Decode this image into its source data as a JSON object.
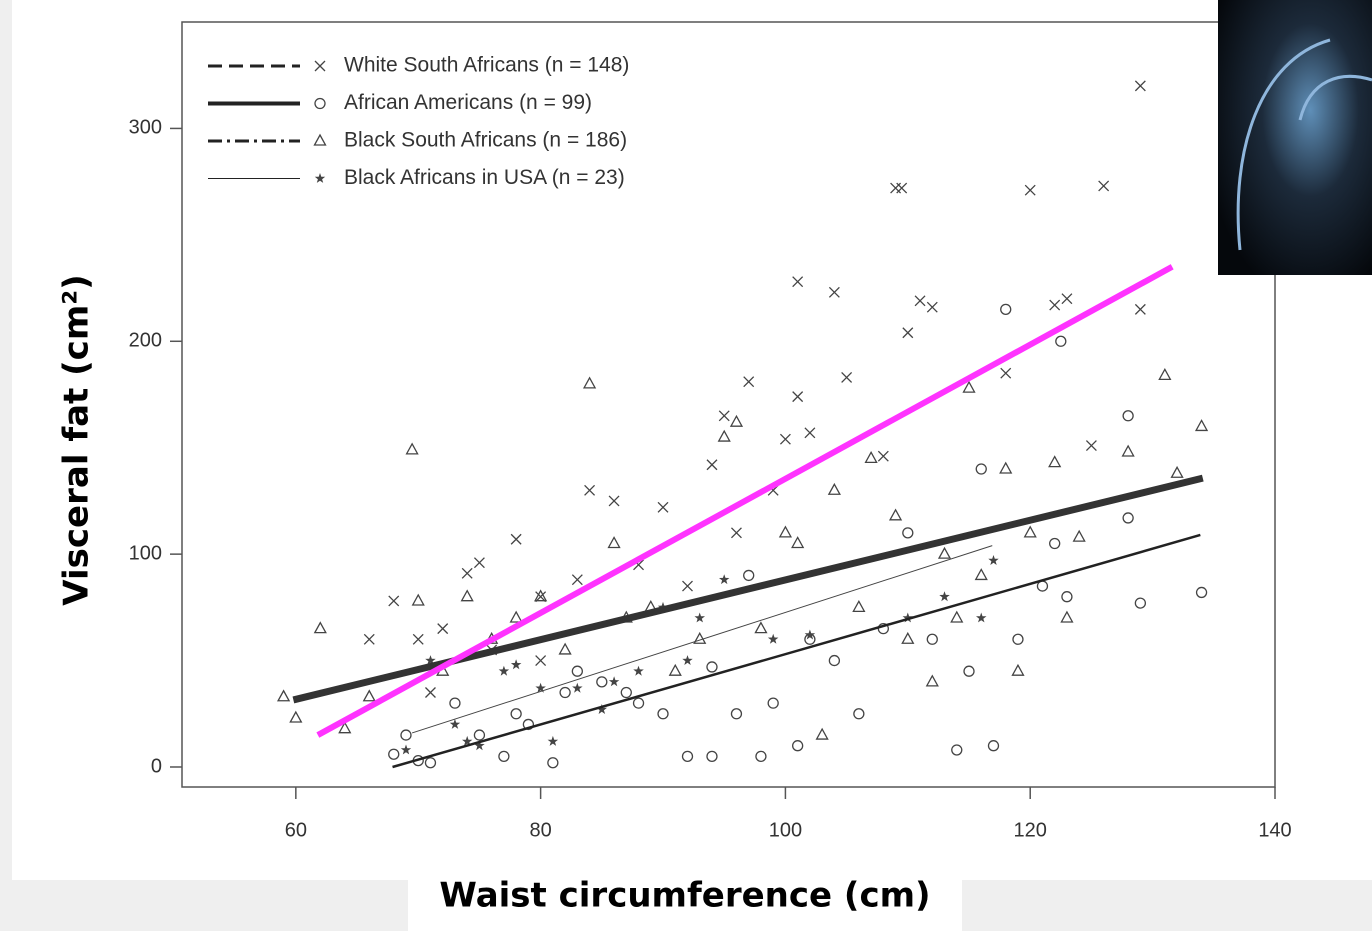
{
  "chart_data": {
    "type": "scatter",
    "xlabel": "Waist circumference (cm)",
    "ylabel": "Visceral fat (cm²)",
    "xlim": [
      50.7,
      140
    ],
    "ylim": [
      -9.4,
      350
    ],
    "xticks": [
      60,
      80,
      100,
      120,
      140
    ],
    "yticks": [
      0,
      100,
      200,
      300
    ],
    "legend": "top-left",
    "series": [
      {
        "name": "White South Africans (n = 148)",
        "marker": "x",
        "color": "#444444",
        "linestyle": "dashed",
        "linewidth": 3,
        "x": [
          129,
          109,
          109.5,
          120,
          126,
          104,
          101,
          111,
          112,
          122,
          123,
          129,
          110,
          97,
          105,
          101,
          95,
          100,
          102,
          94,
          90,
          86,
          84,
          78,
          75,
          74,
          68,
          66,
          70,
          72,
          76,
          80,
          83,
          88,
          92,
          96,
          99,
          108,
          125,
          118,
          71,
          80
        ],
        "y": [
          320,
          272,
          272,
          271,
          273,
          223,
          228,
          219,
          216,
          217,
          220,
          215,
          204,
          181,
          183,
          174,
          165,
          154,
          157,
          142,
          122,
          125,
          130,
          107,
          96,
          91,
          78,
          60,
          60,
          65,
          55,
          80,
          88,
          95,
          85,
          110,
          130,
          146,
          151,
          185,
          35,
          50
        ]
      },
      {
        "name": "African Americans (n = 99)",
        "marker": "circle",
        "color": "#444444",
        "linestyle": "solid",
        "linewidth": 4,
        "x": [
          68,
          69,
          70,
          71,
          73,
          75,
          77,
          78,
          79,
          81,
          82,
          83,
          85,
          87,
          88,
          90,
          92,
          94,
          96,
          98,
          99,
          101,
          102,
          104,
          106,
          108,
          110,
          112,
          114,
          115,
          116,
          117,
          119,
          121,
          122,
          122.5,
          118,
          128,
          128,
          129,
          134,
          123,
          97,
          94
        ],
        "y": [
          6,
          15,
          3,
          2,
          30,
          15,
          5,
          25,
          20,
          2,
          35,
          45,
          40,
          35,
          30,
          25,
          5,
          5,
          25,
          5,
          30,
          10,
          60,
          50,
          25,
          65,
          110,
          60,
          8,
          45,
          140,
          10,
          60,
          85,
          105,
          200,
          215,
          165,
          117,
          77,
          82,
          80,
          90,
          47
        ]
      },
      {
        "name": "Black South Africans (n = 186)",
        "marker": "triangle",
        "color": "#444444",
        "linestyle": "dashdot",
        "linewidth": 3,
        "x": [
          59,
          60,
          62,
          64,
          66,
          69.5,
          70,
          72,
          74,
          76,
          78,
          80,
          82,
          84,
          86,
          87,
          89,
          91,
          93,
          95,
          96,
          98,
          100,
          101,
          104,
          107,
          109,
          110,
          112,
          113,
          114,
          115,
          118,
          119,
          120,
          122,
          123,
          124,
          128,
          131,
          132,
          134,
          116,
          106,
          103
        ],
        "y": [
          33,
          23,
          65,
          18,
          33,
          149,
          78,
          45,
          80,
          60,
          70,
          80,
          55,
          180,
          105,
          70,
          75,
          45,
          60,
          155,
          162,
          65,
          110,
          105,
          130,
          145,
          118,
          60,
          40,
          100,
          70,
          178,
          140,
          45,
          110,
          143,
          70,
          108,
          148,
          184,
          138,
          160,
          90,
          75,
          15
        ]
      },
      {
        "name": "Black Africans in USA (n = 23)",
        "marker": "star",
        "color": "#444444",
        "linestyle": "solid",
        "linewidth": 1,
        "x": [
          69,
          73,
          74,
          77,
          78,
          80,
          81,
          83,
          85,
          88,
          90,
          93,
          95,
          102,
          110,
          113,
          116,
          117,
          75,
          71,
          86,
          92,
          99
        ],
        "y": [
          8,
          20,
          12,
          45,
          48,
          37,
          12,
          37,
          27,
          45,
          75,
          70,
          88,
          62,
          70,
          80,
          70,
          97,
          10,
          50,
          40,
          50,
          60
        ]
      }
    ],
    "fit_lines": [
      {
        "color": "#222222",
        "width": 2.5,
        "x": [
          67.9,
          133.9
        ],
        "y": [
          0,
          109
        ]
      },
      {
        "color": "#444444",
        "width": 1,
        "x": [
          69.5,
          116.9
        ],
        "y": [
          16,
          104
        ]
      },
      {
        "color": "#333333",
        "width": 7,
        "x": [
          59.8,
          134.1
        ],
        "y": [
          31.5,
          135.7
        ]
      },
      {
        "color": "#ff33ff",
        "width": 6,
        "x": [
          61.8,
          131.6
        ],
        "y": [
          15,
          235
        ]
      }
    ]
  }
}
